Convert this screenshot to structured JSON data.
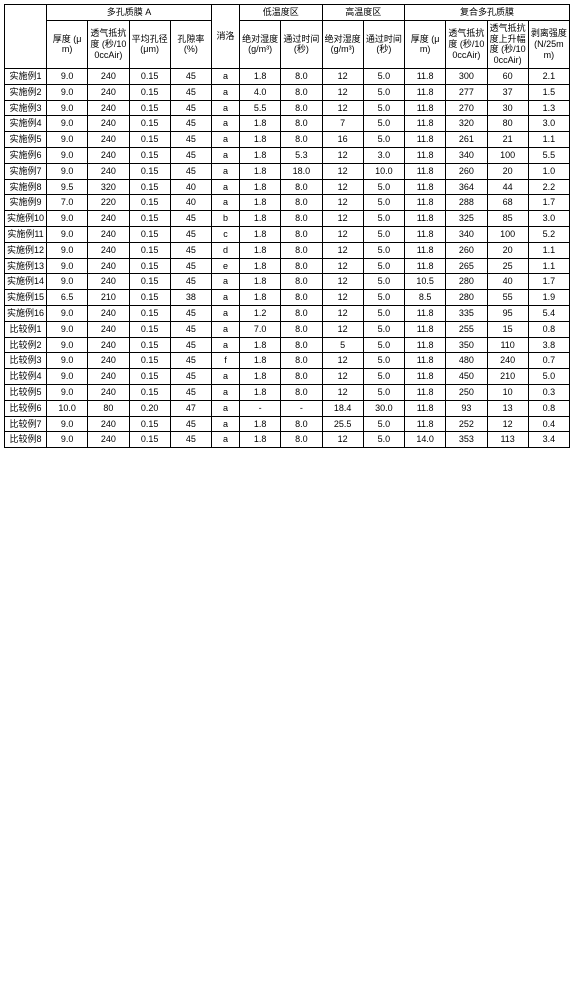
{
  "colors": {
    "border": "#000000",
    "background": "#ffffff",
    "text": "#000000"
  },
  "font": {
    "family": "SimSun, Microsoft YaHei, Arial, sans-serif",
    "size_pt": 9
  },
  "groupHeaders": {
    "col0": "",
    "g1": "多孔质膜 A",
    "g2": "消洛",
    "g3": "低温度区",
    "g4": "高温度区",
    "g5": "复合多孔质膜"
  },
  "subHeaders": {
    "c1": "厚度\n(μm)",
    "c2": "透气抵抗度\n(秒/100ccAir)",
    "c3": "平均孔径\n(μm)",
    "c4": "孔隙率\n(%)",
    "c5": "",
    "c6": "绝对湿度\n(g/m³)",
    "c7": "通过时间\n(秒)",
    "c8": "绝对湿度\n(g/m³)",
    "c9": "通过时间\n(秒)",
    "c10": "厚度\n(μm)",
    "c11": "透气抵抗度\n(秒/100ccAir)",
    "c12": "透气抵抗度上升幅度\n(秒/100ccAir)",
    "c13": "剥离强度\n(N/25mm)"
  },
  "rows": [
    {
      "label": "实施例1",
      "c1": "9.0",
      "c2": "240",
      "c3": "0.15",
      "c4": "45",
      "c5": "a",
      "c6": "1.8",
      "c7": "8.0",
      "c8": "12",
      "c9": "5.0",
      "c10": "11.8",
      "c11": "300",
      "c12": "60",
      "c13": "2.1"
    },
    {
      "label": "实施例2",
      "c1": "9.0",
      "c2": "240",
      "c3": "0.15",
      "c4": "45",
      "c5": "a",
      "c6": "4.0",
      "c7": "8.0",
      "c8": "12",
      "c9": "5.0",
      "c10": "11.8",
      "c11": "277",
      "c12": "37",
      "c13": "1.5"
    },
    {
      "label": "实施例3",
      "c1": "9.0",
      "c2": "240",
      "c3": "0.15",
      "c4": "45",
      "c5": "a",
      "c6": "5.5",
      "c7": "8.0",
      "c8": "12",
      "c9": "5.0",
      "c10": "11.8",
      "c11": "270",
      "c12": "30",
      "c13": "1.3"
    },
    {
      "label": "实施例4",
      "c1": "9.0",
      "c2": "240",
      "c3": "0.15",
      "c4": "45",
      "c5": "a",
      "c6": "1.8",
      "c7": "8.0",
      "c8": "7",
      "c9": "5.0",
      "c10": "11.8",
      "c11": "320",
      "c12": "80",
      "c13": "3.0"
    },
    {
      "label": "实施例5",
      "c1": "9.0",
      "c2": "240",
      "c3": "0.15",
      "c4": "45",
      "c5": "a",
      "c6": "1.8",
      "c7": "8.0",
      "c8": "16",
      "c9": "5.0",
      "c10": "11.8",
      "c11": "261",
      "c12": "21",
      "c13": "1.1"
    },
    {
      "label": "实施例6",
      "c1": "9.0",
      "c2": "240",
      "c3": "0.15",
      "c4": "45",
      "c5": "a",
      "c6": "1.8",
      "c7": "5.3",
      "c8": "12",
      "c9": "3.0",
      "c10": "11.8",
      "c11": "340",
      "c12": "100",
      "c13": "5.5"
    },
    {
      "label": "实施例7",
      "c1": "9.0",
      "c2": "240",
      "c3": "0.15",
      "c4": "45",
      "c5": "a",
      "c6": "1.8",
      "c7": "18.0",
      "c8": "12",
      "c9": "10.0",
      "c10": "11.8",
      "c11": "260",
      "c12": "20",
      "c13": "1.0"
    },
    {
      "label": "实施例8",
      "c1": "9.5",
      "c2": "320",
      "c3": "0.15",
      "c4": "40",
      "c5": "a",
      "c6": "1.8",
      "c7": "8.0",
      "c8": "12",
      "c9": "5.0",
      "c10": "11.8",
      "c11": "364",
      "c12": "44",
      "c13": "2.2"
    },
    {
      "label": "实施例9",
      "c1": "7.0",
      "c2": "220",
      "c3": "0.15",
      "c4": "40",
      "c5": "a",
      "c6": "1.8",
      "c7": "8.0",
      "c8": "12",
      "c9": "5.0",
      "c10": "11.8",
      "c11": "288",
      "c12": "68",
      "c13": "1.7"
    },
    {
      "label": "实施例10",
      "c1": "9.0",
      "c2": "240",
      "c3": "0.15",
      "c4": "45",
      "c5": "b",
      "c6": "1.8",
      "c7": "8.0",
      "c8": "12",
      "c9": "5.0",
      "c10": "11.8",
      "c11": "325",
      "c12": "85",
      "c13": "3.0"
    },
    {
      "label": "实施例11",
      "c1": "9.0",
      "c2": "240",
      "c3": "0.15",
      "c4": "45",
      "c5": "c",
      "c6": "1.8",
      "c7": "8.0",
      "c8": "12",
      "c9": "5.0",
      "c10": "11.8",
      "c11": "340",
      "c12": "100",
      "c13": "5.2"
    },
    {
      "label": "实施例12",
      "c1": "9.0",
      "c2": "240",
      "c3": "0.15",
      "c4": "45",
      "c5": "d",
      "c6": "1.8",
      "c7": "8.0",
      "c8": "12",
      "c9": "5.0",
      "c10": "11.8",
      "c11": "260",
      "c12": "20",
      "c13": "1.1"
    },
    {
      "label": "实施例13",
      "c1": "9.0",
      "c2": "240",
      "c3": "0.15",
      "c4": "45",
      "c5": "e",
      "c6": "1.8",
      "c7": "8.0",
      "c8": "12",
      "c9": "5.0",
      "c10": "11.8",
      "c11": "265",
      "c12": "25",
      "c13": "1.1"
    },
    {
      "label": "实施例14",
      "c1": "9.0",
      "c2": "240",
      "c3": "0.15",
      "c4": "45",
      "c5": "a",
      "c6": "1.8",
      "c7": "8.0",
      "c8": "12",
      "c9": "5.0",
      "c10": "10.5",
      "c11": "280",
      "c12": "40",
      "c13": "1.7"
    },
    {
      "label": "实施例15",
      "c1": "6.5",
      "c2": "210",
      "c3": "0.15",
      "c4": "38",
      "c5": "a",
      "c6": "1.8",
      "c7": "8.0",
      "c8": "12",
      "c9": "5.0",
      "c10": "8.5",
      "c11": "280",
      "c12": "55",
      "c13": "1.9"
    },
    {
      "label": "实施例16",
      "c1": "9.0",
      "c2": "240",
      "c3": "0.15",
      "c4": "45",
      "c5": "a",
      "c6": "1.2",
      "c7": "8.0",
      "c8": "12",
      "c9": "5.0",
      "c10": "11.8",
      "c11": "335",
      "c12": "95",
      "c13": "5.4"
    },
    {
      "label": "比较例1",
      "c1": "9.0",
      "c2": "240",
      "c3": "0.15",
      "c4": "45",
      "c5": "a",
      "c6": "7.0",
      "c7": "8.0",
      "c8": "12",
      "c9": "5.0",
      "c10": "11.8",
      "c11": "255",
      "c12": "15",
      "c13": "0.8"
    },
    {
      "label": "比较例2",
      "c1": "9.0",
      "c2": "240",
      "c3": "0.15",
      "c4": "45",
      "c5": "a",
      "c6": "1.8",
      "c7": "8.0",
      "c8": "5",
      "c9": "5.0",
      "c10": "11.8",
      "c11": "350",
      "c12": "110",
      "c13": "3.8"
    },
    {
      "label": "比较例3",
      "c1": "9.0",
      "c2": "240",
      "c3": "0.15",
      "c4": "45",
      "c5": "f",
      "c6": "1.8",
      "c7": "8.0",
      "c8": "12",
      "c9": "5.0",
      "c10": "11.8",
      "c11": "480",
      "c12": "240",
      "c13": "0.7"
    },
    {
      "label": "比较例4",
      "c1": "9.0",
      "c2": "240",
      "c3": "0.15",
      "c4": "45",
      "c5": "a",
      "c6": "1.8",
      "c7": "8.0",
      "c8": "12",
      "c9": "5.0",
      "c10": "11.8",
      "c11": "450",
      "c12": "210",
      "c13": "5.0"
    },
    {
      "label": "比较例5",
      "c1": "9.0",
      "c2": "240",
      "c3": "0.15",
      "c4": "45",
      "c5": "a",
      "c6": "1.8",
      "c7": "8.0",
      "c8": "12",
      "c9": "5.0",
      "c10": "11.8",
      "c11": "250",
      "c12": "10",
      "c13": "0.3"
    },
    {
      "label": "比较例6",
      "c1": "10.0",
      "c2": "80",
      "c3": "0.20",
      "c4": "47",
      "c5": "a",
      "c6": "-",
      "c7": "-",
      "c8": "18.4",
      "c9": "30.0",
      "c10": "11.8",
      "c11": "93",
      "c12": "13",
      "c13": "0.8"
    },
    {
      "label": "比较例7",
      "c1": "9.0",
      "c2": "240",
      "c3": "0.15",
      "c4": "45",
      "c5": "a",
      "c6": "1.8",
      "c7": "8.0",
      "c8": "25.5",
      "c9": "5.0",
      "c10": "11.8",
      "c11": "252",
      "c12": "12",
      "c13": "0.4"
    },
    {
      "label": "比较例8",
      "c1": "9.0",
      "c2": "240",
      "c3": "0.15",
      "c4": "45",
      "c5": "a",
      "c6": "1.8",
      "c7": "8.0",
      "c8": "12",
      "c9": "5.0",
      "c10": "14.0",
      "c11": "353",
      "c12": "113",
      "c13": "3.4"
    }
  ]
}
